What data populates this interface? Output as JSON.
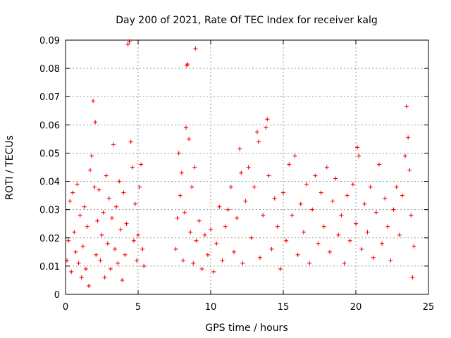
{
  "chart_data": {
    "type": "scatter",
    "title": "Day 200 of 2021, Rate Of TEC Index for receiver kalg",
    "xlabel": "GPS time / hours",
    "ylabel": "ROTI / TECUs",
    "xlim": [
      0,
      25
    ],
    "ylim": [
      0,
      0.09
    ],
    "x_ticks": [
      0,
      5,
      10,
      15,
      20,
      25
    ],
    "x_tick_labels": [
      "0",
      "5",
      "10",
      "15",
      "20",
      "25"
    ],
    "y_ticks": [
      0,
      0.01,
      0.02,
      0.03,
      0.04,
      0.05,
      0.06,
      0.07,
      0.08,
      0.09
    ],
    "y_tick_labels": [
      "0",
      "0.01",
      "0.02",
      "0.03",
      "0.04",
      "0.05",
      "0.06",
      "0.07",
      "0.08",
      "0.09"
    ],
    "grid": true,
    "marker": "+",
    "series": [
      {
        "name": "ROTI",
        "color": "#ff0000",
        "points": [
          [
            0.1,
            0.012
          ],
          [
            0.2,
            0.019
          ],
          [
            0.3,
            0.033
          ],
          [
            0.4,
            0.008
          ],
          [
            0.5,
            0.036
          ],
          [
            0.6,
            0.022
          ],
          [
            0.7,
            0.015
          ],
          [
            0.8,
            0.039
          ],
          [
            0.9,
            0.011
          ],
          [
            1.0,
            0.028
          ],
          [
            1.1,
            0.006
          ],
          [
            1.2,
            0.017
          ],
          [
            1.3,
            0.031
          ],
          [
            1.4,
            0.009
          ],
          [
            1.5,
            0.024
          ],
          [
            1.6,
            0.003
          ],
          [
            1.7,
            0.044
          ],
          [
            1.8,
            0.049
          ],
          [
            1.9,
            0.0685
          ],
          [
            2.0,
            0.038
          ],
          [
            2.05,
            0.061
          ],
          [
            2.1,
            0.014
          ],
          [
            2.2,
            0.026
          ],
          [
            2.3,
            0.037
          ],
          [
            2.4,
            0.012
          ],
          [
            2.5,
            0.021
          ],
          [
            2.6,
            0.029
          ],
          [
            2.7,
            0.006
          ],
          [
            2.8,
            0.042
          ],
          [
            2.9,
            0.018
          ],
          [
            3.0,
            0.034
          ],
          [
            3.1,
            0.009
          ],
          [
            3.2,
            0.027
          ],
          [
            3.3,
            0.053
          ],
          [
            3.4,
            0.016
          ],
          [
            3.5,
            0.031
          ],
          [
            3.6,
            0.011
          ],
          [
            3.7,
            0.04
          ],
          [
            3.8,
            0.023
          ],
          [
            3.9,
            0.005
          ],
          [
            4.0,
            0.036
          ],
          [
            4.1,
            0.014
          ],
          [
            4.2,
            0.025
          ],
          [
            4.3,
            0.0885
          ],
          [
            4.4,
            0.0895
          ],
          [
            4.5,
            0.054
          ],
          [
            4.6,
            0.045
          ],
          [
            4.7,
            0.019
          ],
          [
            4.8,
            0.032
          ],
          [
            4.9,
            0.012
          ],
          [
            5.0,
            0.021
          ],
          [
            5.1,
            0.038
          ],
          [
            5.2,
            0.046
          ],
          [
            5.3,
            0.016
          ],
          [
            5.4,
            0.01
          ],
          [
            7.6,
            0.016
          ],
          [
            7.7,
            0.027
          ],
          [
            7.8,
            0.05
          ],
          [
            7.9,
            0.035
          ],
          [
            8.0,
            0.043
          ],
          [
            8.1,
            0.012
          ],
          [
            8.2,
            0.029
          ],
          [
            8.3,
            0.059
          ],
          [
            8.35,
            0.081
          ],
          [
            8.4,
            0.0815
          ],
          [
            8.5,
            0.055
          ],
          [
            8.6,
            0.022
          ],
          [
            8.7,
            0.038
          ],
          [
            8.8,
            0.011
          ],
          [
            8.9,
            0.045
          ],
          [
            8.95,
            0.087
          ],
          [
            9.0,
            0.019
          ],
          [
            9.2,
            0.026
          ],
          [
            9.4,
            0.009
          ],
          [
            9.6,
            0.021
          ],
          [
            9.8,
            0.014
          ],
          [
            10.0,
            0.023
          ],
          [
            10.2,
            0.008
          ],
          [
            10.4,
            0.018
          ],
          [
            10.6,
            0.031
          ],
          [
            10.8,
            0.012
          ],
          [
            11.0,
            0.024
          ],
          [
            11.2,
            0.03
          ],
          [
            11.4,
            0.038
          ],
          [
            11.6,
            0.015
          ],
          [
            11.8,
            0.027
          ],
          [
            12.0,
            0.0515
          ],
          [
            12.1,
            0.043
          ],
          [
            12.2,
            0.011
          ],
          [
            12.4,
            0.033
          ],
          [
            12.6,
            0.045
          ],
          [
            12.8,
            0.02
          ],
          [
            13.0,
            0.038
          ],
          [
            13.2,
            0.0575
          ],
          [
            13.3,
            0.054
          ],
          [
            13.4,
            0.013
          ],
          [
            13.6,
            0.028
          ],
          [
            13.8,
            0.059
          ],
          [
            13.9,
            0.062
          ],
          [
            14.0,
            0.042
          ],
          [
            14.2,
            0.016
          ],
          [
            14.4,
            0.034
          ],
          [
            14.6,
            0.024
          ],
          [
            14.8,
            0.009
          ],
          [
            15.0,
            0.036
          ],
          [
            15.2,
            0.019
          ],
          [
            15.4,
            0.046
          ],
          [
            15.6,
            0.028
          ],
          [
            15.8,
            0.049
          ],
          [
            16.0,
            0.014
          ],
          [
            16.2,
            0.032
          ],
          [
            16.4,
            0.022
          ],
          [
            16.6,
            0.039
          ],
          [
            16.8,
            0.011
          ],
          [
            17.0,
            0.03
          ],
          [
            17.2,
            0.042
          ],
          [
            17.4,
            0.018
          ],
          [
            17.6,
            0.036
          ],
          [
            17.8,
            0.024
          ],
          [
            18.0,
            0.045
          ],
          [
            18.2,
            0.015
          ],
          [
            18.4,
            0.033
          ],
          [
            18.6,
            0.041
          ],
          [
            18.8,
            0.021
          ],
          [
            19.0,
            0.028
          ],
          [
            19.2,
            0.011
          ],
          [
            19.4,
            0.035
          ],
          [
            19.6,
            0.019
          ],
          [
            19.8,
            0.039
          ],
          [
            20.0,
            0.025
          ],
          [
            20.1,
            0.052
          ],
          [
            20.2,
            0.049
          ],
          [
            20.4,
            0.016
          ],
          [
            20.6,
            0.032
          ],
          [
            20.8,
            0.022
          ],
          [
            21.0,
            0.038
          ],
          [
            21.2,
            0.013
          ],
          [
            21.4,
            0.029
          ],
          [
            21.6,
            0.046
          ],
          [
            21.8,
            0.018
          ],
          [
            22.0,
            0.034
          ],
          [
            22.2,
            0.024
          ],
          [
            22.4,
            0.012
          ],
          [
            22.6,
            0.03
          ],
          [
            22.8,
            0.038
          ],
          [
            23.0,
            0.021
          ],
          [
            23.2,
            0.035
          ],
          [
            23.4,
            0.049
          ],
          [
            23.5,
            0.0665
          ],
          [
            23.6,
            0.0555
          ],
          [
            23.7,
            0.044
          ],
          [
            23.8,
            0.028
          ],
          [
            23.9,
            0.006
          ],
          [
            24.0,
            0.017
          ]
        ]
      }
    ]
  }
}
